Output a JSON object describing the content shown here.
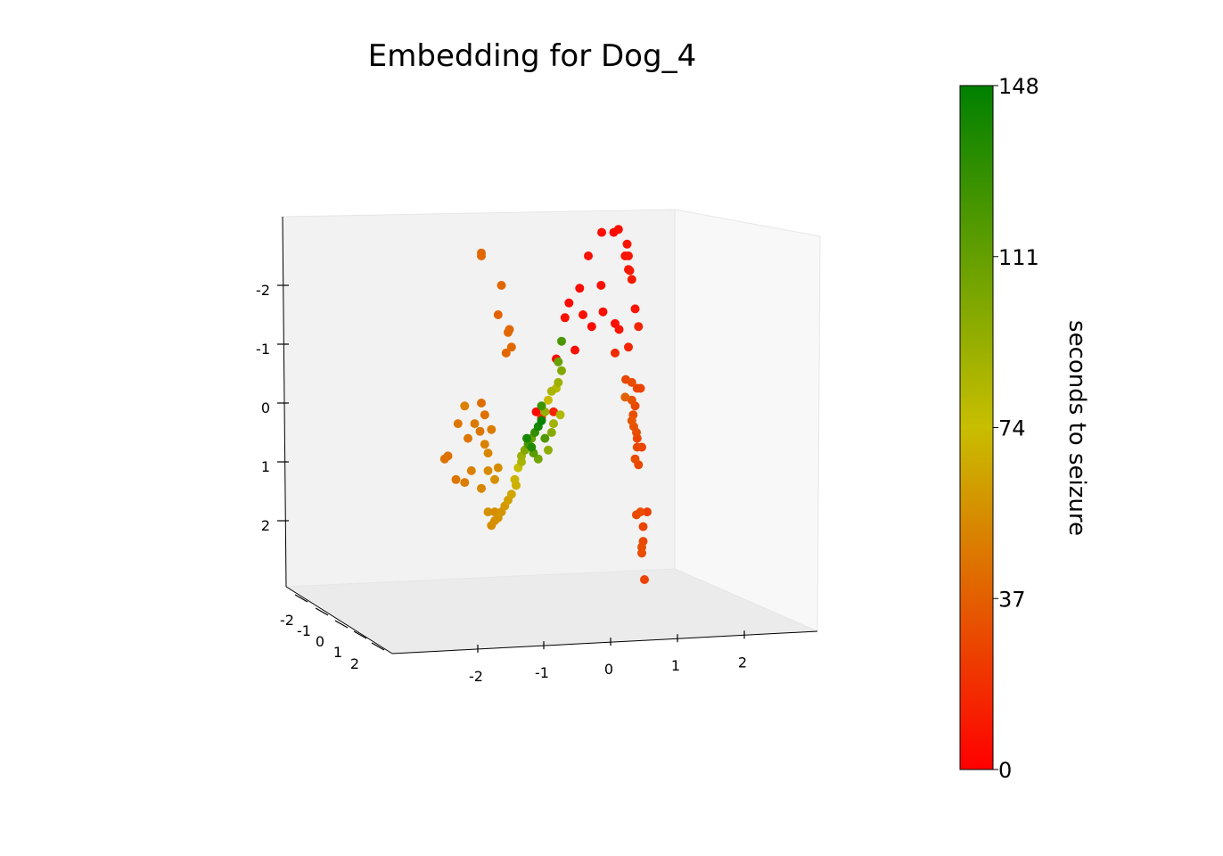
{
  "chart_data": {
    "type": "scatter",
    "title": "Embedding for Dog_4",
    "axes": {
      "z_ticks": [
        "-2",
        "-1",
        "0",
        "1",
        "2"
      ],
      "x_ticks": [
        "-2",
        "-1",
        "0",
        "1",
        "2"
      ],
      "depth_ticks": [
        "-2",
        "-1",
        "0",
        "1",
        "2"
      ]
    },
    "colorbar": {
      "label": "seconds to seizure",
      "ticks": [
        "0",
        "37",
        "74",
        "111",
        "148"
      ],
      "range": [
        0,
        148
      ],
      "colors": [
        "#ff0000",
        "#c8be00",
        "#008000"
      ]
    },
    "points": [
      {
        "x": -3.2,
        "z": -2.55,
        "c": 40
      },
      {
        "x": -3.2,
        "z": -2.5,
        "c": 40
      },
      {
        "x": -2.9,
        "z": -2.0,
        "c": 40
      },
      {
        "x": -2.95,
        "z": -1.5,
        "c": 38
      },
      {
        "x": -2.8,
        "z": -1.2,
        "c": 40
      },
      {
        "x": -2.78,
        "z": -1.25,
        "c": 40
      },
      {
        "x": -2.75,
        "z": -0.95,
        "c": 40
      },
      {
        "x": -2.83,
        "z": -0.85,
        "c": 40
      },
      {
        "x": -1.4,
        "z": -2.9,
        "c": 6
      },
      {
        "x": -1.22,
        "z": -2.9,
        "c": 4
      },
      {
        "x": -1.15,
        "z": -2.95,
        "c": 6
      },
      {
        "x": -1.02,
        "z": -2.7,
        "c": 8
      },
      {
        "x": -1.05,
        "z": -2.5,
        "c": 8
      },
      {
        "x": -1.0,
        "z": -2.5,
        "c": 8
      },
      {
        "x": -1.0,
        "z": -2.27,
        "c": 8
      },
      {
        "x": -0.98,
        "z": -2.25,
        "c": 10
      },
      {
        "x": -0.95,
        "z": -2.1,
        "c": 10
      },
      {
        "x": -1.6,
        "z": -2.5,
        "c": 6
      },
      {
        "x": -1.73,
        "z": -1.95,
        "c": 4
      },
      {
        "x": -1.41,
        "z": -2.0,
        "c": 6
      },
      {
        "x": -1.89,
        "z": -1.7,
        "c": 4
      },
      {
        "x": -1.68,
        "z": -1.5,
        "c": 6
      },
      {
        "x": -1.95,
        "z": -1.45,
        "c": 6
      },
      {
        "x": -1.38,
        "z": -1.55,
        "c": 6
      },
      {
        "x": -1.55,
        "z": -1.3,
        "c": 4
      },
      {
        "x": -1.2,
        "z": -1.35,
        "c": 6
      },
      {
        "x": -1.14,
        "z": -1.25,
        "c": 8
      },
      {
        "x": -0.9,
        "z": -1.6,
        "c": 8
      },
      {
        "x": -0.85,
        "z": -1.3,
        "c": 14
      },
      {
        "x": -1.2,
        "z": -0.85,
        "c": 16
      },
      {
        "x": -1.0,
        "z": -0.95,
        "c": 14
      },
      {
        "x": -1.8,
        "z": -0.9,
        "c": 6
      },
      {
        "x": -2.08,
        "z": -0.75,
        "c": 4
      },
      {
        "x": -1.04,
        "z": -0.4,
        "c": 28
      },
      {
        "x": -0.95,
        "z": -0.35,
        "c": 30
      },
      {
        "x": -0.87,
        "z": -0.25,
        "c": 26
      },
      {
        "x": -0.82,
        "z": -0.25,
        "c": 26
      },
      {
        "x": -1.05,
        "z": -0.1,
        "c": 38
      },
      {
        "x": -0.95,
        "z": -0.05,
        "c": 32
      },
      {
        "x": -0.9,
        "z": 0.05,
        "c": 28
      },
      {
        "x": -0.93,
        "z": 0.2,
        "c": 30
      },
      {
        "x": -0.95,
        "z": 0.3,
        "c": 34
      },
      {
        "x": -0.92,
        "z": 0.4,
        "c": 32
      },
      {
        "x": -0.88,
        "z": 0.5,
        "c": 30
      },
      {
        "x": -0.87,
        "z": 0.6,
        "c": 26
      },
      {
        "x": -0.87,
        "z": 0.75,
        "c": 28
      },
      {
        "x": -0.8,
        "z": 0.75,
        "c": 26
      },
      {
        "x": -0.9,
        "z": 0.95,
        "c": 30
      },
      {
        "x": -0.85,
        "z": 1.05,
        "c": 28
      },
      {
        "x": -0.82,
        "z": 1.85,
        "c": 30
      },
      {
        "x": -0.88,
        "z": 1.9,
        "c": 28
      },
      {
        "x": -0.78,
        "z": 2.1,
        "c": 26
      },
      {
        "x": -0.78,
        "z": 2.35,
        "c": 28
      },
      {
        "x": -0.8,
        "z": 2.45,
        "c": 30
      },
      {
        "x": -0.8,
        "z": 2.55,
        "c": 30
      },
      {
        "x": -0.76,
        "z": 3.0,
        "c": 26
      },
      {
        "x": -0.72,
        "z": 1.85,
        "c": 24
      },
      {
        "x": -2.12,
        "z": 0.15,
        "c": 14
      },
      {
        "x": -2.38,
        "z": 0.15,
        "c": 4
      },
      {
        "x": -2.3,
        "z": 0.25,
        "c": 16
      },
      {
        "x": -2.0,
        "z": -1.05,
        "c": 120
      },
      {
        "x": -2.05,
        "z": -0.7,
        "c": 110
      },
      {
        "x": -2.0,
        "z": -0.55,
        "c": 100
      },
      {
        "x": -2.05,
        "z": -0.35,
        "c": 90
      },
      {
        "x": -2.15,
        "z": -0.2,
        "c": 85
      },
      {
        "x": -2.08,
        "z": -0.25,
        "c": 80
      },
      {
        "x": -2.2,
        "z": -0.05,
        "c": 72
      },
      {
        "x": -2.3,
        "z": 0.05,
        "c": 125
      },
      {
        "x": -2.25,
        "z": 0.15,
        "c": 92
      },
      {
        "x": -2.3,
        "z": 0.3,
        "c": 145
      },
      {
        "x": -2.35,
        "z": 0.4,
        "c": 140
      },
      {
        "x": -2.4,
        "z": 0.5,
        "c": 130
      },
      {
        "x": -2.45,
        "z": 0.6,
        "c": 110
      },
      {
        "x": -2.5,
        "z": 0.7,
        "c": 120
      },
      {
        "x": -2.55,
        "z": 0.8,
        "c": 100
      },
      {
        "x": -2.52,
        "z": 0.6,
        "c": 140
      },
      {
        "x": -2.45,
        "z": 0.75,
        "c": 135
      },
      {
        "x": -2.6,
        "z": 0.9,
        "c": 90
      },
      {
        "x": -2.6,
        "z": 1.0,
        "c": 85
      },
      {
        "x": -2.65,
        "z": 1.1,
        "c": 75
      },
      {
        "x": -2.7,
        "z": 1.3,
        "c": 70
      },
      {
        "x": -2.68,
        "z": 1.4,
        "c": 68
      },
      {
        "x": -2.75,
        "z": 1.55,
        "c": 65
      },
      {
        "x": -2.8,
        "z": 1.65,
        "c": 62
      },
      {
        "x": -2.85,
        "z": 1.75,
        "c": 60
      },
      {
        "x": -2.9,
        "z": 1.85,
        "c": 58
      },
      {
        "x": -2.95,
        "z": 1.95,
        "c": 57
      },
      {
        "x": -3.0,
        "z": 2.0,
        "c": 56
      },
      {
        "x": -3.05,
        "z": 2.08,
        "c": 55
      },
      {
        "x": -2.42,
        "z": 0.85,
        "c": 115
      },
      {
        "x": -2.35,
        "z": 0.95,
        "c": 105
      },
      {
        "x": -2.2,
        "z": 0.8,
        "c": 95
      },
      {
        "x": -2.25,
        "z": 0.6,
        "c": 118
      },
      {
        "x": -2.15,
        "z": 0.5,
        "c": 98
      },
      {
        "x": -2.12,
        "z": 0.35,
        "c": 88
      },
      {
        "x": -2.02,
        "z": 0.2,
        "c": 82
      },
      {
        "x": -3.45,
        "z": 0.05,
        "c": 50
      },
      {
        "x": -3.55,
        "z": 0.35,
        "c": 46
      },
      {
        "x": -3.3,
        "z": 0.35,
        "c": 48
      },
      {
        "x": -3.22,
        "z": 0.48,
        "c": 46
      },
      {
        "x": -3.05,
        "z": 0.45,
        "c": 48
      },
      {
        "x": -3.15,
        "z": 0.2,
        "c": 44
      },
      {
        "x": -3.2,
        "z": 0.0,
        "c": 42
      },
      {
        "x": -3.4,
        "z": 0.6,
        "c": 46
      },
      {
        "x": -3.1,
        "z": 0.85,
        "c": 52
      },
      {
        "x": -3.15,
        "z": 0.7,
        "c": 50
      },
      {
        "x": -2.95,
        "z": 1.1,
        "c": 54
      },
      {
        "x": -3.0,
        "z": 1.3,
        "c": 56
      },
      {
        "x": -3.1,
        "z": 1.15,
        "c": 54
      },
      {
        "x": -3.2,
        "z": 1.45,
        "c": 52
      },
      {
        "x": -3.35,
        "z": 1.15,
        "c": 50
      },
      {
        "x": -3.45,
        "z": 1.35,
        "c": 48
      },
      {
        "x": -3.58,
        "z": 1.3,
        "c": 46
      },
      {
        "x": -3.7,
        "z": 0.9,
        "c": 44
      },
      {
        "x": -3.75,
        "z": 0.95,
        "c": 44
      },
      {
        "x": -3.1,
        "z": 1.85,
        "c": 56
      },
      {
        "x": -3.0,
        "z": 1.85,
        "c": 54
      }
    ]
  }
}
